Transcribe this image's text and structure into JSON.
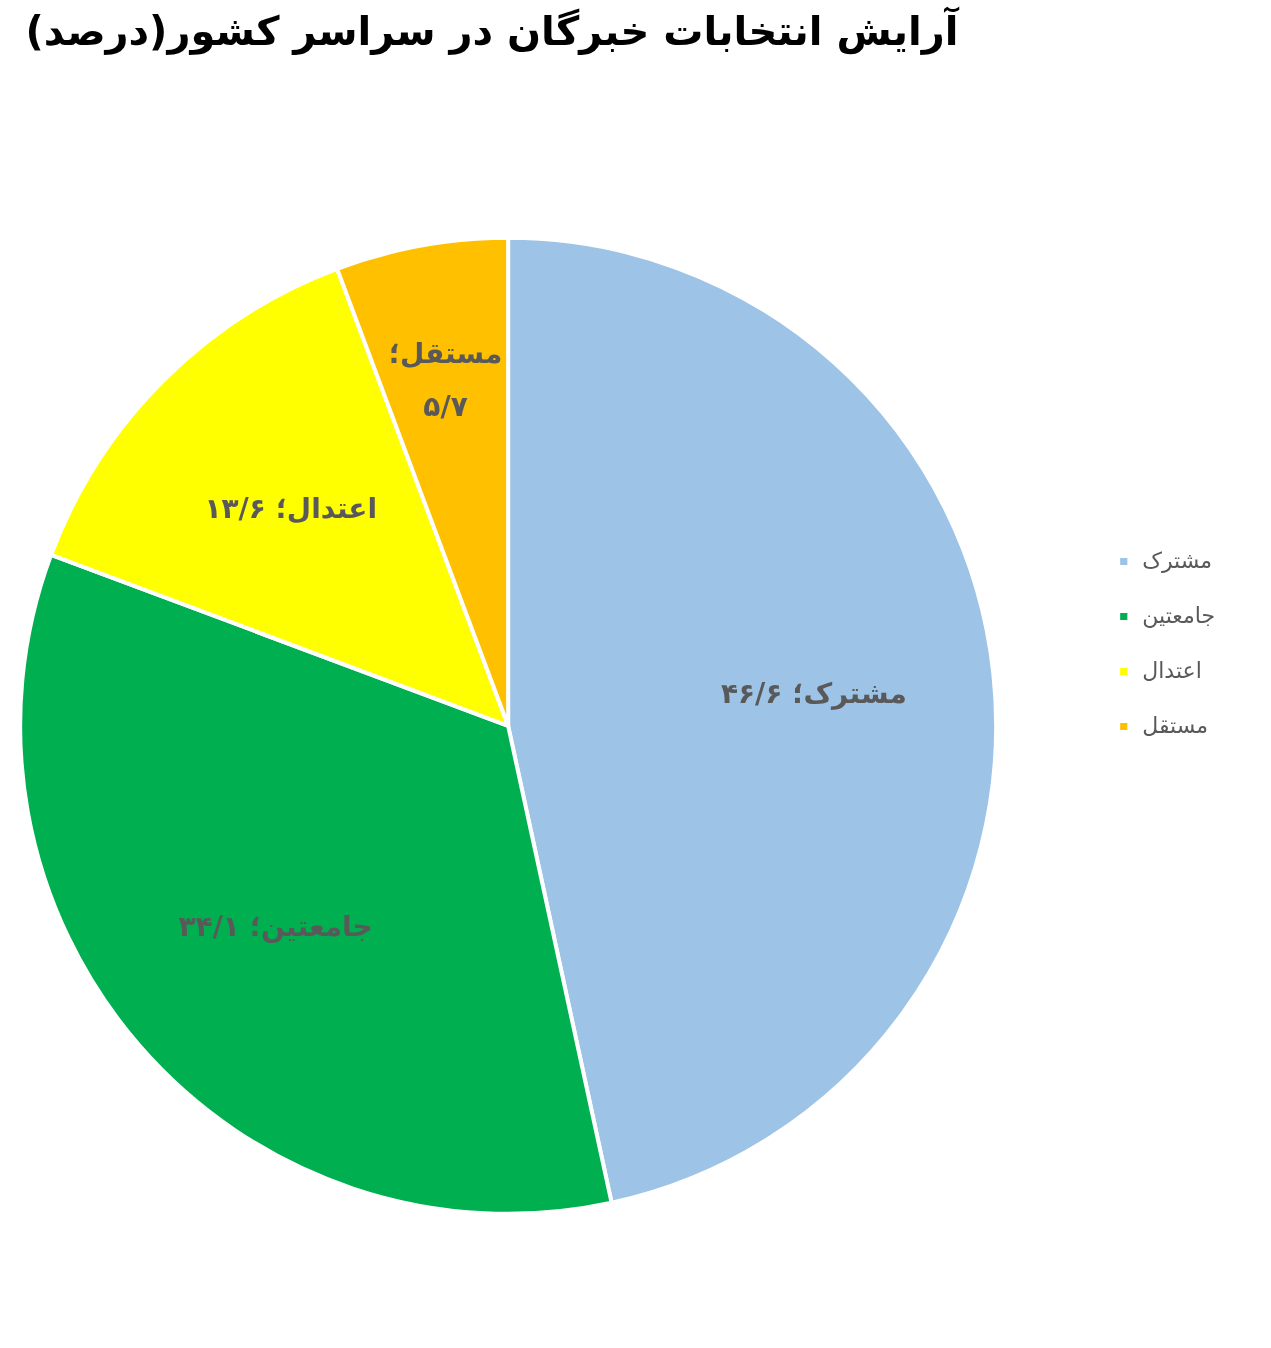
{
  "chart_data": {
    "type": "pie",
    "title": "آرایش انتخابات خبرگان در سراسر کشور(درصد)",
    "categories": [
      "مشترک",
      "جامعتین",
      "اعتدال",
      "مستقل"
    ],
    "values": [
      46.6,
      34.1,
      13.6,
      5.7
    ],
    "colors": [
      "#9dc3e6",
      "#00b050",
      "#ffff00",
      "#ffc000"
    ],
    "value_labels": [
      "مشترک؛ ۴۶/۶",
      "جامعتین؛ ۳۴/۱",
      "اعتدال؛ ۱۳/۶",
      "مستقل؛ ۵/۷"
    ],
    "legend": "right"
  }
}
